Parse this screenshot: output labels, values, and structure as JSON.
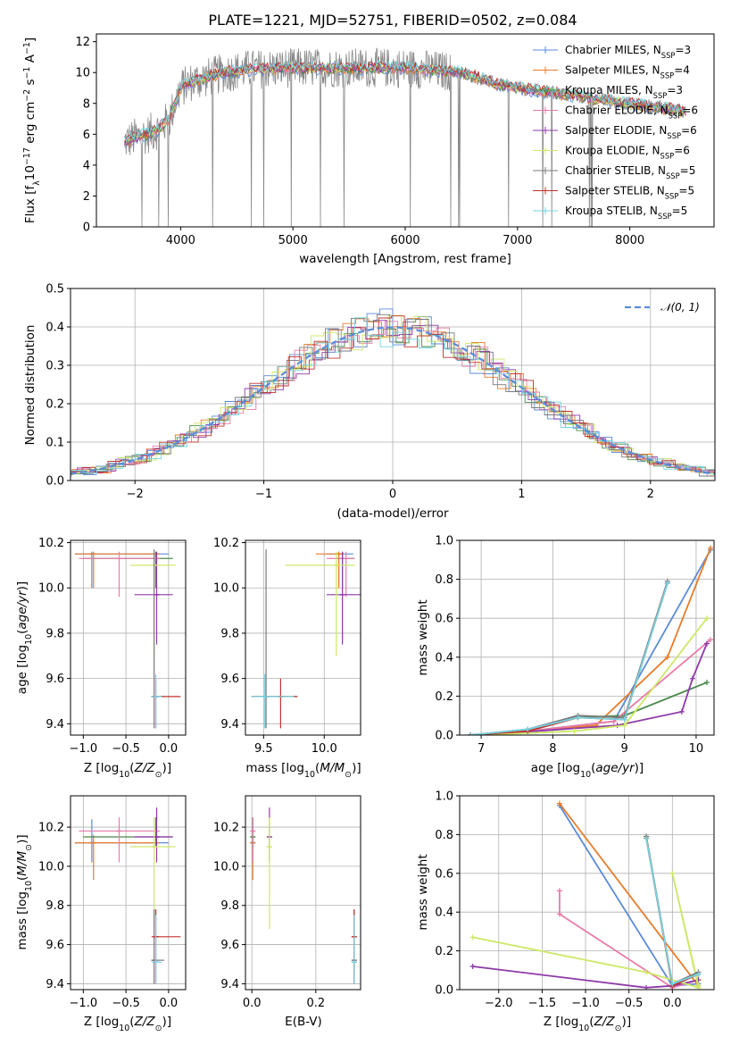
{
  "title": "PLATE=1221, MJD=52751, FIBERID=0502, z=0.084",
  "colors": {
    "Chabrier MILES": "#5b8bd8",
    "Salpeter MILES": "#e87b2a",
    "Kroupa MILES": "#4a8a4a",
    "Chabrier ELODIE": "#e87ca9",
    "Salpeter ELODIE": "#8e3aa8",
    "Kroupa ELODIE": "#cde867",
    "Chabrier STELIB": "#7a7a7a",
    "Salpeter STELIB": "#c0332b",
    "Kroupa STELIB": "#74d3e0",
    "data": "#888888",
    "normal": "#5b8bd8"
  },
  "chart_data": [
    {
      "type": "line",
      "id": "spectrum",
      "xlabel": "wavelength [Angstrom, rest frame]",
      "ylabel": "Flux [f_λ 10^-17 erg cm^-2 s^-1 A^-1]",
      "xlim": [
        3250,
        8750
      ],
      "ylim": [
        0,
        12.5
      ],
      "xticks": [
        4000,
        5000,
        6000,
        7000,
        8000
      ],
      "yticks": [
        0,
        2,
        4,
        6,
        8,
        10,
        12
      ],
      "legend": [
        {
          "label": "Chabrier MILES, N",
          "sub": "SSP",
          "n": "=3"
        },
        {
          "label": "Salpeter MILES, N",
          "sub": "SSP",
          "n": "=4"
        },
        {
          "label": "Kroupa MILES, N",
          "sub": "SSP",
          "n": "=3"
        },
        {
          "label": "Chabrier ELODIE, N",
          "sub": "SSP",
          "n": "=6"
        },
        {
          "label": "Salpeter ELODIE, N",
          "sub": "SSP",
          "n": "=6"
        },
        {
          "label": "Kroupa ELODIE, N",
          "sub": "SSP",
          "n": "=6"
        },
        {
          "label": "Chabrier STELIB, N",
          "sub": "SSP",
          "n": "=5"
        },
        {
          "label": "Salpeter STELIB, N",
          "sub": "SSP",
          "n": "=5"
        },
        {
          "label": "Kroupa STELIB, N",
          "sub": "SSP",
          "n": "=5"
        }
      ],
      "legend_position": "upper right",
      "continuum": {
        "x": [
          3500,
          3600,
          3700,
          3800,
          3900,
          4000,
          4100,
          4200,
          4400,
          4600,
          5000,
          5500,
          6000,
          6500,
          6800,
          7000,
          7200,
          7500,
          8000,
          8500
        ],
        "y": [
          5.5,
          5.8,
          6.0,
          6.3,
          7.0,
          9.0,
          9.4,
          9.6,
          10.0,
          10.2,
          10.3,
          10.3,
          10.3,
          10.0,
          9.3,
          9.0,
          8.8,
          8.5,
          8.0,
          7.5
        ]
      }
    },
    {
      "type": "histogram",
      "id": "residuals",
      "xlabel": "(data-model)/error",
      "ylabel": "Normed distribution",
      "xlim": [
        -2.5,
        2.5
      ],
      "ylim": [
        0,
        0.5
      ],
      "xticks": [
        -2,
        -1,
        0,
        1,
        2
      ],
      "yticks": [
        0.0,
        0.1,
        0.2,
        0.3,
        0.4,
        0.5
      ],
      "grid": true,
      "reference_label": "𝒩(0, 1)",
      "reference": "standard normal density"
    },
    {
      "type": "scatter",
      "id": "age-Z",
      "xlabel": "Z [log10(Z/Z⊙)]",
      "ylabel": "age [log10(age/yr)]",
      "xlim": [
        -1.15,
        0.2
      ],
      "ylim": [
        9.35,
        10.21
      ],
      "xticks": [
        -1.0,
        -0.5,
        0.0
      ],
      "yticks": [
        9.4,
        9.6,
        9.8,
        10.0,
        10.2
      ],
      "grid": true
    },
    {
      "type": "scatter",
      "id": "age-mass",
      "xlabel": "mass [log10(M/M⊙)]",
      "xlim": [
        9.35,
        10.3
      ],
      "ylim": [
        9.35,
        10.21
      ],
      "xticks": [
        9.5,
        10.0
      ],
      "yticks": [
        9.4,
        9.6,
        9.8,
        10.0,
        10.2
      ],
      "grid": true
    },
    {
      "type": "line",
      "id": "weight-age",
      "xlabel": "age [log10(age/yr)]",
      "ylabel": "mass weight",
      "xlim": [
        6.7,
        10.25
      ],
      "ylim": [
        0,
        1.0
      ],
      "xticks": [
        7,
        8,
        9,
        10
      ],
      "yticks": [
        0.0,
        0.2,
        0.4,
        0.6,
        0.8,
        1.0
      ],
      "grid": true,
      "series": [
        {
          "model": "Chabrier MILES",
          "x": [
            6.85,
            7.65,
            8.85,
            10.2
          ],
          "y": [
            0.0,
            0.02,
            0.07,
            0.95
          ]
        },
        {
          "model": "Salpeter MILES",
          "x": [
            6.85,
            7.65,
            8.6,
            9.6,
            10.2
          ],
          "y": [
            0.0,
            0.02,
            0.05,
            0.4,
            0.96
          ]
        },
        {
          "model": "Kroupa MILES",
          "x": [
            6.85,
            7.65,
            8.35,
            9.0,
            10.15
          ],
          "y": [
            0.0,
            0.03,
            0.09,
            0.1,
            0.27
          ]
        },
        {
          "model": "Chabrier ELODIE",
          "x": [
            7.0,
            7.65,
            8.85,
            10.2
          ],
          "y": [
            0.0,
            0.02,
            0.07,
            0.49
          ]
        },
        {
          "model": "Salpeter ELODIE",
          "x": [
            7.0,
            8.9,
            9.8,
            9.95,
            10.15
          ],
          "y": [
            0.0,
            0.05,
            0.12,
            0.29,
            0.47
          ]
        },
        {
          "model": "Kroupa ELODIE",
          "x": [
            7.0,
            8.3,
            9.0,
            10.15
          ],
          "y": [
            0.0,
            0.02,
            0.05,
            0.6
          ]
        },
        {
          "model": "Chabrier STELIB",
          "x": [
            6.85,
            7.65,
            8.35,
            9.0,
            9.6
          ],
          "y": [
            0.0,
            0.03,
            0.1,
            0.09,
            0.79
          ]
        },
        {
          "model": "Salpeter STELIB",
          "x": [
            6.85,
            7.65,
            8.35,
            9.0,
            9.6
          ],
          "y": [
            0.0,
            0.02,
            0.09,
            0.08,
            0.78
          ]
        },
        {
          "model": "Kroupa STELIB",
          "x": [
            6.85,
            7.65,
            8.35,
            9.0,
            9.6
          ],
          "y": [
            0.0,
            0.03,
            0.09,
            0.08,
            0.78
          ]
        }
      ]
    },
    {
      "type": "scatter",
      "id": "mass-Z",
      "xlabel": "Z [log10(Z/Z⊙)]",
      "ylabel": "mass [log10(M/M⊙)]",
      "xlim": [
        -1.15,
        0.2
      ],
      "ylim": [
        9.37,
        10.36
      ],
      "xticks": [
        -1.0,
        -0.5,
        0.0
      ],
      "yticks": [
        9.4,
        9.6,
        9.8,
        10.0,
        10.2
      ],
      "grid": true
    },
    {
      "type": "scatter",
      "id": "mass-ebv",
      "xlabel": "E(B-V)",
      "xlim": [
        -0.02,
        0.34
      ],
      "ylim": [
        9.37,
        10.36
      ],
      "xticks": [
        0.0,
        0.2
      ],
      "yticks": [
        9.4,
        9.6,
        9.8,
        10.0,
        10.2
      ],
      "grid": true
    },
    {
      "type": "line",
      "id": "weight-Z",
      "xlabel": "Z [log10(Z/Z⊙)]",
      "ylabel": "mass weight",
      "xlim": [
        -2.45,
        0.48
      ],
      "ylim": [
        0,
        1.0
      ],
      "xticks": [
        -2.0,
        -1.5,
        -1.0,
        -0.5,
        0.0
      ],
      "yticks": [
        0.0,
        0.2,
        0.4,
        0.6,
        0.8,
        1.0
      ],
      "grid": true,
      "series": [
        {
          "model": "Chabrier MILES",
          "x": [
            -1.3,
            0.0,
            0.3
          ],
          "y": [
            0.95,
            0.02,
            0.03
          ]
        },
        {
          "model": "Salpeter MILES",
          "x": [
            -1.3,
            0.3
          ],
          "y": [
            0.96,
            0.02
          ]
        },
        {
          "model": "Kroupa MILES",
          "x": [
            -0.3,
            0.0,
            0.3
          ],
          "y": [
            0.79,
            0.02,
            0.08
          ]
        },
        {
          "model": "Chabrier ELODIE",
          "x": [
            -1.3,
            -1.3,
            0.0,
            0.3
          ],
          "y": [
            0.51,
            0.39,
            0.01,
            0.05
          ]
        },
        {
          "model": "Salpeter ELODIE",
          "x": [
            -2.3,
            -0.3,
            0.0,
            0.3
          ],
          "y": [
            0.12,
            0.01,
            0.02,
            0.05
          ]
        },
        {
          "model": "Kroupa ELODIE",
          "x": [
            -2.3,
            -0.3,
            0.3,
            0.0,
            0.3
          ],
          "y": [
            0.27,
            0.09,
            0.01,
            0.6,
            0.02
          ]
        },
        {
          "model": "Chabrier STELIB",
          "x": [
            -0.3,
            0.0,
            0.3
          ],
          "y": [
            0.79,
            0.03,
            0.09
          ]
        },
        {
          "model": "Salpeter STELIB",
          "x": [
            -0.3,
            0.0,
            0.3
          ],
          "y": [
            0.78,
            0.02,
            0.08
          ]
        },
        {
          "model": "Kroupa STELIB",
          "x": [
            -0.3,
            0.0,
            0.3
          ],
          "y": [
            0.78,
            0.03,
            0.08
          ]
        }
      ]
    }
  ],
  "fits": [
    {
      "model": "Chabrier MILES",
      "Z": -0.9,
      "Zlo": -1.1,
      "Zhi": 0.0,
      "age": 10.15,
      "agelo": 10.0,
      "agehi": 10.16,
      "mass": 10.12,
      "masslo": 10.02,
      "masshi": 10.24,
      "ebv": 0.003
    },
    {
      "model": "Salpeter MILES",
      "Z": -0.88,
      "Zlo": -1.1,
      "Zhi": -0.1,
      "age": 10.15,
      "agelo": 10.0,
      "agehi": 10.16,
      "mass": 10.12,
      "masslo": 9.93,
      "masshi": 10.16,
      "ebv": 0.003
    },
    {
      "model": "Kroupa MILES",
      "Z": -0.15,
      "Zlo": -1.0,
      "Zhi": 0.05,
      "age": 10.13,
      "agelo": 10.0,
      "agehi": 10.16,
      "mass": 10.15,
      "masslo": 10.1,
      "masshi": 10.25,
      "ebv": 0.003
    },
    {
      "model": "Chabrier ELODIE",
      "Z": -0.58,
      "Zlo": -1.05,
      "Zhi": -0.1,
      "age": 10.13,
      "agelo": 9.96,
      "agehi": 10.16,
      "mass": 10.18,
      "masslo": 10.02,
      "masshi": 10.25,
      "ebv": 0.003
    },
    {
      "model": "Salpeter ELODIE",
      "Z": -0.14,
      "Zlo": -0.4,
      "Zhi": 0.05,
      "age": 9.97,
      "agelo": 9.75,
      "agehi": 10.16,
      "mass": 10.15,
      "masslo": 10.02,
      "masshi": 10.3,
      "ebv": 0.055
    },
    {
      "model": "Kroupa ELODIE",
      "Z": -0.17,
      "Zlo": -0.45,
      "Zhi": 0.08,
      "age": 10.1,
      "agelo": 9.7,
      "agehi": 10.16,
      "mass": 10.1,
      "masslo": 9.68,
      "masshi": 10.25,
      "ebv": 0.055
    },
    {
      "model": "Chabrier STELIB",
      "Z": -0.17,
      "Zlo": -0.2,
      "Zhi": -0.05,
      "age": 9.52,
      "agelo": 9.38,
      "agehi": 10.17,
      "mass": 9.52,
      "masslo": 9.4,
      "masshi": 9.78,
      "ebv": 0.32
    },
    {
      "model": "Salpeter STELIB",
      "Z": -0.15,
      "Zlo": -0.2,
      "Zhi": 0.14,
      "age": 9.52,
      "agelo": 9.38,
      "agehi": 9.6,
      "mass": 9.64,
      "masslo": 9.4,
      "masshi": 9.78,
      "ebv": 0.32
    },
    {
      "model": "Kroupa STELIB",
      "Z": -0.15,
      "Zlo": -0.2,
      "Zhi": -0.08,
      "age": 9.52,
      "agelo": 9.38,
      "agehi": 9.62,
      "mass": 9.51,
      "masslo": 9.4,
      "masshi": 9.75,
      "ebv": 0.32
    }
  ]
}
